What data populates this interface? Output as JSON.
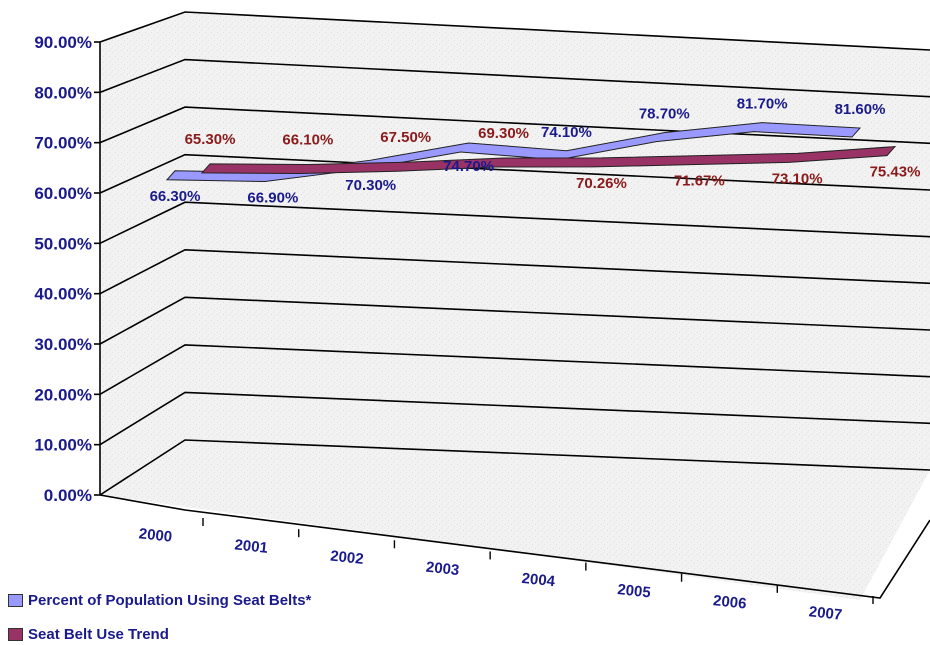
{
  "chart_data": {
    "type": "line",
    "style": "3d-ribbon",
    "categories": [
      "2000",
      "2001",
      "2002",
      "2003",
      "2004",
      "2005",
      "2006",
      "2007"
    ],
    "ylim": [
      0,
      90
    ],
    "y_ticks": [
      "0.00%",
      "10.00%",
      "20.00%",
      "30.00%",
      "40.00%",
      "50.00%",
      "60.00%",
      "70.00%",
      "80.00%",
      "90.00%"
    ],
    "grid": true,
    "legend_position": "bottom-left",
    "series": [
      {
        "name": "Percent of Population Using Seat Belts*",
        "color": "#9999ff",
        "label_color": "#1a1a8c",
        "values": [
          66.3,
          66.9,
          70.3,
          74.7,
          74.1,
          78.7,
          81.7,
          81.6
        ],
        "labels": [
          "66.30%",
          "66.90%",
          "70.30%",
          "74.70%",
          "74.10%",
          "78.70%",
          "81.70%",
          "81.60%"
        ]
      },
      {
        "name": "Seat Belt Use Trend",
        "color": "#993366",
        "label_color": "#8b1a1a",
        "values": [
          65.3,
          66.1,
          67.5,
          69.3,
          70.26,
          71.67,
          73.1,
          75.43
        ],
        "labels": [
          "65.30%",
          "66.10%",
          "67.50%",
          "69.30%",
          "70.26%",
          "71.67%",
          "73.10%",
          "75.43%"
        ]
      }
    ]
  }
}
